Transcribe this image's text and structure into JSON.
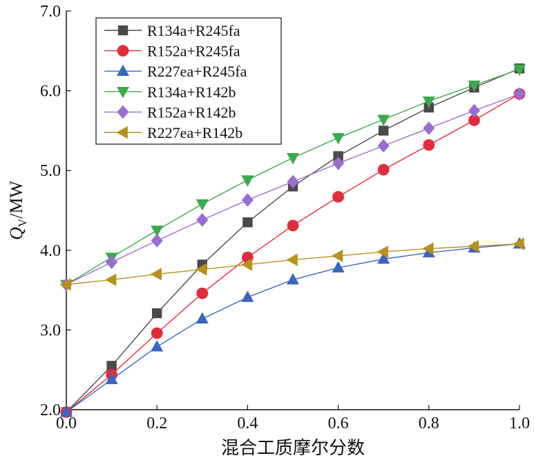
{
  "chart_data": {
    "type": "line",
    "xlabel": "混合工质摩尔分数",
    "ylabel_main": "Q",
    "ylabel_sub": "V",
    "ylabel_unit": "/MW",
    "xlim": [
      0.0,
      1.0
    ],
    "ylim": [
      2.0,
      7.0
    ],
    "xticks": [
      "0.0",
      "0.2",
      "0.4",
      "0.6",
      "0.8",
      "1.0"
    ],
    "yticks": [
      "2.0",
      "3.0",
      "4.0",
      "5.0",
      "6.0",
      "7.0"
    ],
    "grid": false,
    "legend_position": "top-left",
    "x": [
      0.0,
      0.1,
      0.2,
      0.3,
      0.4,
      0.5,
      0.6,
      0.7,
      0.8,
      0.9,
      1.0
    ],
    "series": [
      {
        "name": "R134a+R245fa",
        "marker": "square",
        "color": "#4a4a4a",
        "values": [
          1.97,
          2.55,
          3.21,
          3.82,
          4.35,
          4.8,
          5.18,
          5.5,
          5.79,
          6.04,
          6.28
        ]
      },
      {
        "name": "R152a+R245fa",
        "marker": "circle",
        "color": "#e02d3c",
        "values": [
          1.97,
          2.44,
          2.96,
          3.46,
          3.91,
          4.31,
          4.67,
          5.01,
          5.32,
          5.63,
          5.96
        ]
      },
      {
        "name": "R227ea+R245fa",
        "marker": "triangle-up",
        "color": "#3a66c0",
        "values": [
          1.97,
          2.38,
          2.79,
          3.14,
          3.41,
          3.63,
          3.78,
          3.89,
          3.97,
          4.03,
          4.08
        ]
      },
      {
        "name": "R134a+R142b",
        "marker": "triangle-down",
        "color": "#3caa4c",
        "values": [
          3.57,
          3.91,
          4.25,
          4.58,
          4.88,
          5.16,
          5.41,
          5.64,
          5.87,
          6.07,
          6.27
        ]
      },
      {
        "name": "R152a+R142b",
        "marker": "diamond",
        "color": "#9b6dd0",
        "values": [
          3.57,
          3.85,
          4.12,
          4.38,
          4.63,
          4.86,
          5.09,
          5.31,
          5.53,
          5.75,
          5.96
        ]
      },
      {
        "name": "R227ea+R142b",
        "marker": "triangle-left",
        "color": "#b8901a",
        "values": [
          3.57,
          3.63,
          3.7,
          3.76,
          3.82,
          3.88,
          3.93,
          3.98,
          4.02,
          4.05,
          4.08
        ]
      }
    ]
  }
}
